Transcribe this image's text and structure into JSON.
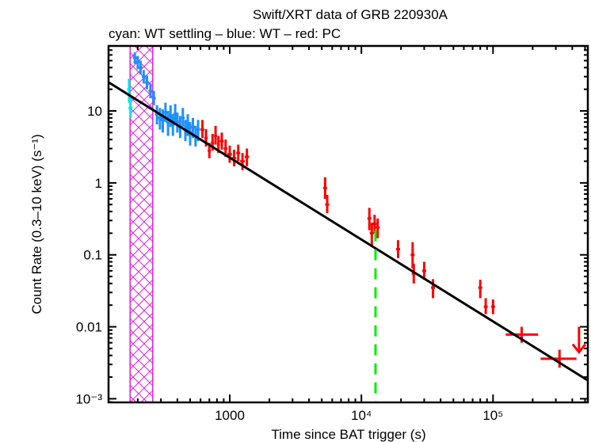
{
  "chart_data": {
    "type": "scatter",
    "title": "Swift/XRT data of GRB 220930A",
    "subtitle": "cyan: WT settling – blue: WT – red: PC",
    "xlabel": "Time since BAT trigger (s)",
    "ylabel": "Count Rate (0.3–10 keV) (s⁻¹)",
    "xscale": "log",
    "yscale": "log",
    "xlim": [
      120,
      525000
    ],
    "ylim": [
      0.00089,
      80
    ],
    "grid": false,
    "x_ticks": [
      {
        "value": 1000,
        "label": "1000"
      },
      {
        "value": 10000,
        "label": "10⁴"
      },
      {
        "value": 100000,
        "label": "10⁵"
      }
    ],
    "y_ticks": [
      {
        "value": 10,
        "label": "10"
      },
      {
        "value": 1,
        "label": "1"
      },
      {
        "value": 0.1,
        "label": "0.1"
      },
      {
        "value": 0.01,
        "label": "0.01"
      },
      {
        "value": 0.001,
        "label": "10⁻³"
      }
    ],
    "colors": {
      "wt_settling": "#00e5ee",
      "wt": "#1e90ff",
      "pc": "#ff0000",
      "fit": "#000000",
      "excluded_region": "#e020e0",
      "marker_line": "#00ee00"
    },
    "excluded_region": {
      "x_start": 175,
      "x_end": 260,
      "label": "hatched interval"
    },
    "fit_line": {
      "x": [
        120,
        525000
      ],
      "y": [
        25,
        0.0018
      ]
    },
    "vertical_marker": {
      "x": 12800,
      "y_top": 0.22
    },
    "series": [
      {
        "name": "WT settling",
        "color_key": "wt_settling",
        "points": [
          {
            "x": 172,
            "y": 20,
            "ylo": 13,
            "yhi": 28
          },
          {
            "x": 176,
            "y": 11,
            "ylo": 8,
            "yhi": 15
          }
        ]
      },
      {
        "name": "WT",
        "color_key": "wt",
        "points": [
          {
            "x": 190,
            "y": 55,
            "ylo": 45,
            "yhi": 65
          },
          {
            "x": 200,
            "y": 48,
            "ylo": 38,
            "yhi": 58
          },
          {
            "x": 210,
            "y": 40,
            "ylo": 32,
            "yhi": 50
          },
          {
            "x": 222,
            "y": 30,
            "ylo": 24,
            "yhi": 37
          },
          {
            "x": 235,
            "y": 25,
            "ylo": 20,
            "yhi": 31
          },
          {
            "x": 250,
            "y": 19,
            "ylo": 15,
            "yhi": 24
          },
          {
            "x": 265,
            "y": 15,
            "ylo": 12,
            "yhi": 19
          },
          {
            "x": 280,
            "y": 9,
            "ylo": 6.5,
            "yhi": 12
          },
          {
            "x": 295,
            "y": 8,
            "ylo": 5.5,
            "yhi": 11
          },
          {
            "x": 310,
            "y": 7.5,
            "ylo": 5,
            "yhi": 10.5
          },
          {
            "x": 325,
            "y": 9.5,
            "ylo": 7,
            "yhi": 13
          },
          {
            "x": 340,
            "y": 7,
            "ylo": 4.5,
            "yhi": 10
          },
          {
            "x": 355,
            "y": 8.5,
            "ylo": 6,
            "yhi": 12
          },
          {
            "x": 370,
            "y": 6.5,
            "ylo": 4.5,
            "yhi": 9
          },
          {
            "x": 385,
            "y": 9,
            "ylo": 6.5,
            "yhi": 12.5
          },
          {
            "x": 400,
            "y": 7,
            "ylo": 5,
            "yhi": 9.5
          },
          {
            "x": 420,
            "y": 6,
            "ylo": 4.2,
            "yhi": 8.5
          },
          {
            "x": 440,
            "y": 8,
            "ylo": 6,
            "yhi": 11
          },
          {
            "x": 460,
            "y": 5.5,
            "ylo": 3.8,
            "yhi": 7.5
          },
          {
            "x": 480,
            "y": 6.5,
            "ylo": 4.5,
            "yhi": 9
          },
          {
            "x": 500,
            "y": 5,
            "ylo": 3.3,
            "yhi": 7
          },
          {
            "x": 525,
            "y": 6,
            "ylo": 4.2,
            "yhi": 8
          },
          {
            "x": 550,
            "y": 4.5,
            "ylo": 3.2,
            "yhi": 6.2
          },
          {
            "x": 575,
            "y": 5.5,
            "ylo": 3.8,
            "yhi": 7.5
          }
        ]
      },
      {
        "name": "PC",
        "color_key": "pc",
        "points": [
          {
            "x": 620,
            "y": 5.5,
            "ylo": 4.2,
            "yhi": 7.5,
            "xlo": 600,
            "xhi": 640
          },
          {
            "x": 660,
            "y": 4.2,
            "ylo": 3.2,
            "yhi": 5.6,
            "xlo": 640,
            "xhi": 680
          },
          {
            "x": 700,
            "y": 2.8,
            "ylo": 2.2,
            "yhi": 3.6,
            "xlo": 680,
            "xhi": 720
          },
          {
            "x": 740,
            "y": 3.6,
            "ylo": 2.8,
            "yhi": 4.8,
            "xlo": 720,
            "xhi": 760
          },
          {
            "x": 780,
            "y": 4.5,
            "ylo": 3.4,
            "yhi": 6.2,
            "xlo": 760,
            "xhi": 800
          },
          {
            "x": 820,
            "y": 3.4,
            "ylo": 2.6,
            "yhi": 4.5,
            "xlo": 800,
            "xhi": 840
          },
          {
            "x": 870,
            "y": 3.8,
            "ylo": 2.9,
            "yhi": 5,
            "xlo": 840,
            "xhi": 900
          },
          {
            "x": 930,
            "y": 3.0,
            "ylo": 2.3,
            "yhi": 4,
            "xlo": 900,
            "xhi": 960
          },
          {
            "x": 1000,
            "y": 2.5,
            "ylo": 1.9,
            "yhi": 3.3,
            "xlo": 960,
            "xhi": 1040
          },
          {
            "x": 1080,
            "y": 2.2,
            "ylo": 1.7,
            "yhi": 2.9,
            "xlo": 1040,
            "xhi": 1120
          },
          {
            "x": 1160,
            "y": 2.6,
            "ylo": 2.0,
            "yhi": 3.4,
            "xlo": 1120,
            "xhi": 1200
          },
          {
            "x": 1250,
            "y": 2.0,
            "ylo": 1.5,
            "yhi": 2.6,
            "xlo": 1200,
            "xhi": 1300
          },
          {
            "x": 1350,
            "y": 2.3,
            "ylo": 1.7,
            "yhi": 3.0,
            "xlo": 1300,
            "xhi": 1400
          },
          {
            "x": 5300,
            "y": 0.85,
            "ylo": 0.6,
            "yhi": 1.2
          },
          {
            "x": 5500,
            "y": 0.5,
            "ylo": 0.38,
            "yhi": 0.68
          },
          {
            "x": 11500,
            "y": 0.32,
            "ylo": 0.22,
            "yhi": 0.45
          },
          {
            "x": 12000,
            "y": 0.2,
            "ylo": 0.13,
            "yhi": 0.28
          },
          {
            "x": 12600,
            "y": 0.27,
            "ylo": 0.2,
            "yhi": 0.36
          },
          {
            "x": 13300,
            "y": 0.24,
            "ylo": 0.17,
            "yhi": 0.32
          },
          {
            "x": 19000,
            "y": 0.12,
            "ylo": 0.09,
            "yhi": 0.16
          },
          {
            "x": 24500,
            "y": 0.1,
            "ylo": 0.065,
            "yhi": 0.15
          },
          {
            "x": 25000,
            "y": 0.055,
            "ylo": 0.04,
            "yhi": 0.075
          },
          {
            "x": 30000,
            "y": 0.06,
            "ylo": 0.045,
            "yhi": 0.08
          },
          {
            "x": 35000,
            "y": 0.035,
            "ylo": 0.025,
            "yhi": 0.046
          },
          {
            "x": 80000,
            "y": 0.035,
            "ylo": 0.025,
            "yhi": 0.045
          },
          {
            "x": 88000,
            "y": 0.019,
            "ylo": 0.015,
            "yhi": 0.025
          },
          {
            "x": 100000,
            "y": 0.019,
            "ylo": 0.015,
            "yhi": 0.024
          },
          {
            "x": 165000,
            "y": 0.0078,
            "ylo": 0.006,
            "yhi": 0.01,
            "xlo": 125000,
            "xhi": 220000
          },
          {
            "x": 320000,
            "y": 0.0036,
            "ylo": 0.0027,
            "yhi": 0.0048,
            "xlo": 230000,
            "xhi": 430000
          }
        ]
      }
    ],
    "upper_limits": [
      {
        "x": 450000,
        "y": 0.01,
        "color_key": "pc"
      }
    ]
  }
}
